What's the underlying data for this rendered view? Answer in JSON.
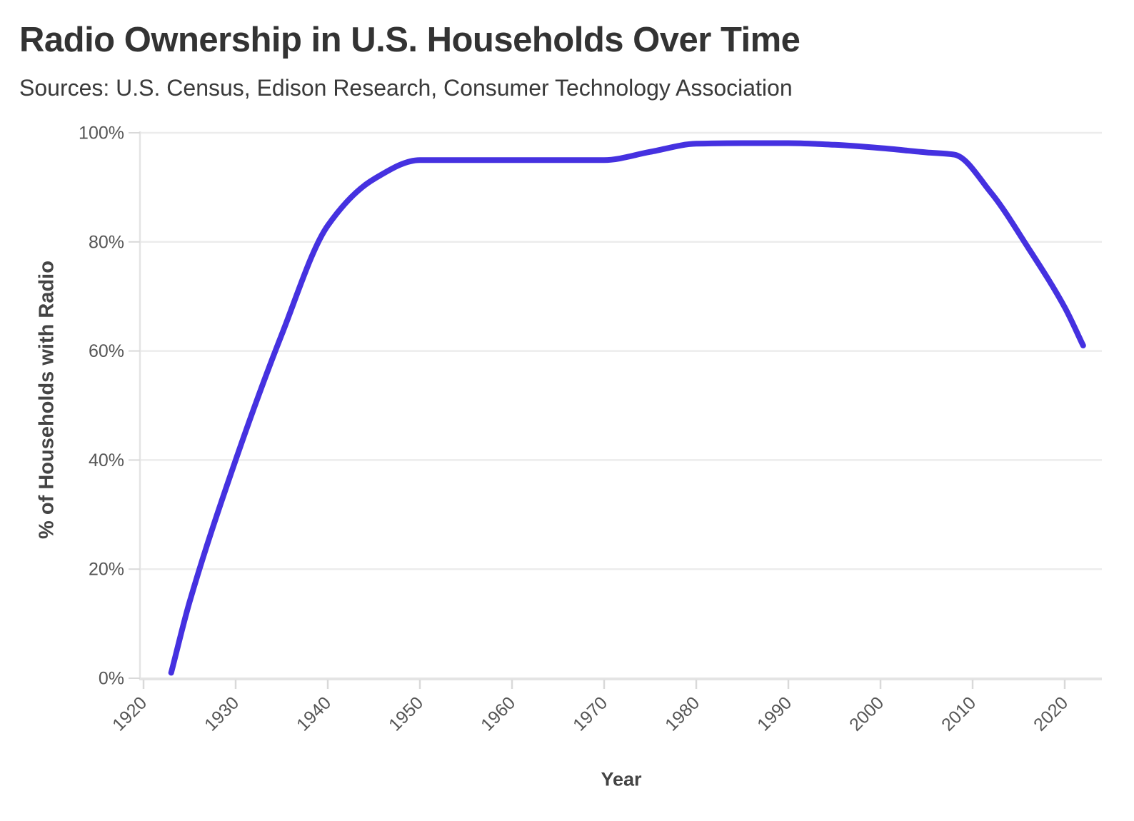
{
  "header": {
    "title": "Radio Ownership in U.S. Households Over Time",
    "subtitle": "Sources: U.S. Census, Edison Research, Consumer Technology Association"
  },
  "chart_data": {
    "type": "line",
    "title": "Radio Ownership in U.S. Households Over Time",
    "subtitle": "Sources: U.S. Census, Edison Research, Consumer Technology Association",
    "xlabel": "Year",
    "ylabel": "% of Households with Radio",
    "xlim": [
      1920,
      2024
    ],
    "ylim": [
      0,
      100
    ],
    "grid": "horizontal",
    "legend_position": "none",
    "x_ticks": [
      1920,
      1930,
      1940,
      1950,
      1960,
      1970,
      1980,
      1990,
      2000,
      2010,
      2020
    ],
    "x_tick_labels": [
      "1920",
      "1930",
      "1940",
      "1950",
      "1960",
      "1970",
      "1980",
      "1990",
      "2000",
      "2010",
      "2020"
    ],
    "y_ticks": [
      0,
      20,
      40,
      60,
      80,
      100
    ],
    "y_tick_labels": [
      "0%",
      "20%",
      "40%",
      "60%",
      "80%",
      "100%"
    ],
    "series": [
      {
        "name": "% of Households with Radio",
        "points": [
          [
            1923,
            1
          ],
          [
            1925,
            14
          ],
          [
            1930,
            40
          ],
          [
            1935,
            63
          ],
          [
            1940,
            83
          ],
          [
            1945,
            91.5
          ],
          [
            1950,
            95
          ],
          [
            1955,
            95
          ],
          [
            1960,
            95
          ],
          [
            1965,
            95
          ],
          [
            1970,
            95
          ],
          [
            1975,
            96.5
          ],
          [
            1980,
            98
          ],
          [
            1985,
            98.1
          ],
          [
            1990,
            98.1
          ],
          [
            1995,
            97.8
          ],
          [
            2000,
            97.2
          ],
          [
            2005,
            96.4
          ],
          [
            2008,
            96
          ],
          [
            2012,
            89
          ],
          [
            2016,
            79
          ],
          [
            2020,
            68
          ],
          [
            2022,
            61
          ]
        ]
      }
    ]
  },
  "colors": {
    "line": "#4531e0",
    "grid": "#ececec",
    "axis": "#e4e4e4",
    "tick_mark": "#d9d9d9",
    "tick_label": "#555555",
    "axis_title": "#444444",
    "title": "#333333",
    "subtitle": "#3a3a3a",
    "background": "#ffffff"
  }
}
